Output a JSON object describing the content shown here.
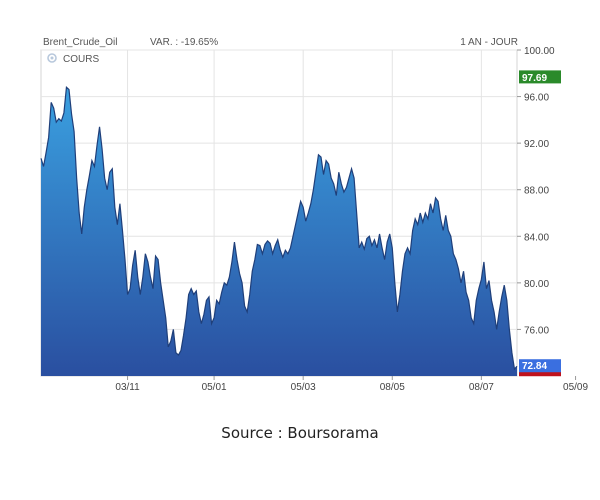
{
  "chart_data": {
    "type": "area",
    "title": "Brent_Crude_Oil",
    "variation": "VAR. : -19.65%",
    "period": "1 AN - JOUR",
    "legend": "COURS",
    "ylim": [
      72,
      100
    ],
    "yticks": [
      100,
      96,
      92,
      88,
      84,
      80,
      76
    ],
    "ytick_labels": [
      "100.00",
      "96.00",
      "92.00",
      "88.00",
      "84.00",
      "80.00",
      "76.00"
    ],
    "xtick_labels": [
      "03/11",
      "05/01",
      "05/03",
      "08/05",
      "08/07",
      "05/09"
    ],
    "high_marker": {
      "value": 97.69,
      "label": "97.69",
      "color": "#2a8a2a"
    },
    "last_marker": {
      "value": 72.84,
      "label": "72.84",
      "color": "#3a6fe0"
    },
    "low_marker_color": "#c0121c",
    "fill_top_color": "#3aa0e0",
    "fill_bottom_color": "#2a4fa0",
    "line_color": "#1f3f7a",
    "grid": true,
    "series": [
      {
        "values": [
          90.7,
          90.0,
          91.2,
          92.5,
          95.5,
          95.0,
          93.8,
          94.1,
          93.9,
          94.6,
          96.8,
          96.6,
          94.5,
          93.0,
          89.0,
          86.0,
          84.2,
          86.5,
          88.0,
          89.2,
          90.5,
          90.0,
          91.8,
          93.4,
          91.5,
          89.0,
          88.0,
          89.5,
          89.8,
          86.5,
          85.0,
          86.8,
          84.5,
          82.0,
          79.0,
          79.5,
          81.5,
          82.8,
          80.5,
          79.0,
          80.5,
          82.5,
          81.8,
          80.5,
          79.5,
          82.3,
          82.0,
          80.0,
          78.5,
          77.0,
          74.5,
          75.0,
          76.0,
          74.0,
          73.8,
          74.2,
          75.5,
          77.0,
          79.0,
          79.5,
          79.0,
          79.3,
          77.5,
          76.5,
          77.3,
          78.5,
          78.8,
          76.5,
          77.0,
          78.5,
          78.2,
          79.2,
          80.0,
          79.8,
          80.5,
          81.8,
          83.5,
          82.0,
          80.8,
          80.0,
          78.0,
          77.5,
          79.0,
          81.0,
          82.0,
          83.3,
          83.2,
          82.5,
          83.3,
          83.6,
          83.4,
          82.5,
          83.2,
          83.7,
          82.8,
          82.2,
          82.8,
          82.5,
          83.0,
          84.0,
          85.0,
          86.0,
          87.0,
          86.5,
          85.3,
          86.0,
          86.8,
          88.0,
          89.5,
          91.0,
          90.8,
          89.3,
          90.5,
          90.2,
          89.0,
          88.5,
          87.5,
          89.5,
          88.5,
          87.8,
          88.2,
          89.0,
          89.8,
          89.0,
          86.0,
          83.0,
          83.5,
          82.9,
          83.8,
          84.0,
          83.2,
          83.7,
          83.0,
          84.2,
          83.0,
          82.0,
          83.5,
          84.2,
          83.0,
          80.0,
          77.5,
          79.0,
          81.0,
          82.5,
          83.0,
          82.5,
          84.5,
          85.5,
          85.0,
          86.0,
          85.2,
          86.0,
          85.5,
          86.8,
          86.0,
          87.3,
          87.0,
          85.5,
          84.5,
          85.8,
          84.5,
          84.0,
          82.5,
          82.0,
          81.2,
          80.0,
          81.0,
          79.2,
          78.5,
          77.0,
          76.5,
          78.5,
          79.5,
          80.3,
          81.8,
          79.5,
          80.2,
          78.5,
          77.5,
          76.0,
          77.5,
          78.8,
          79.8,
          78.5,
          76.0,
          74.0,
          72.6,
          72.84
        ]
      }
    ],
    "xtick_positions": [
      34,
      68,
      103,
      138,
      173,
      210
    ]
  },
  "caption": "Source : Boursorama"
}
